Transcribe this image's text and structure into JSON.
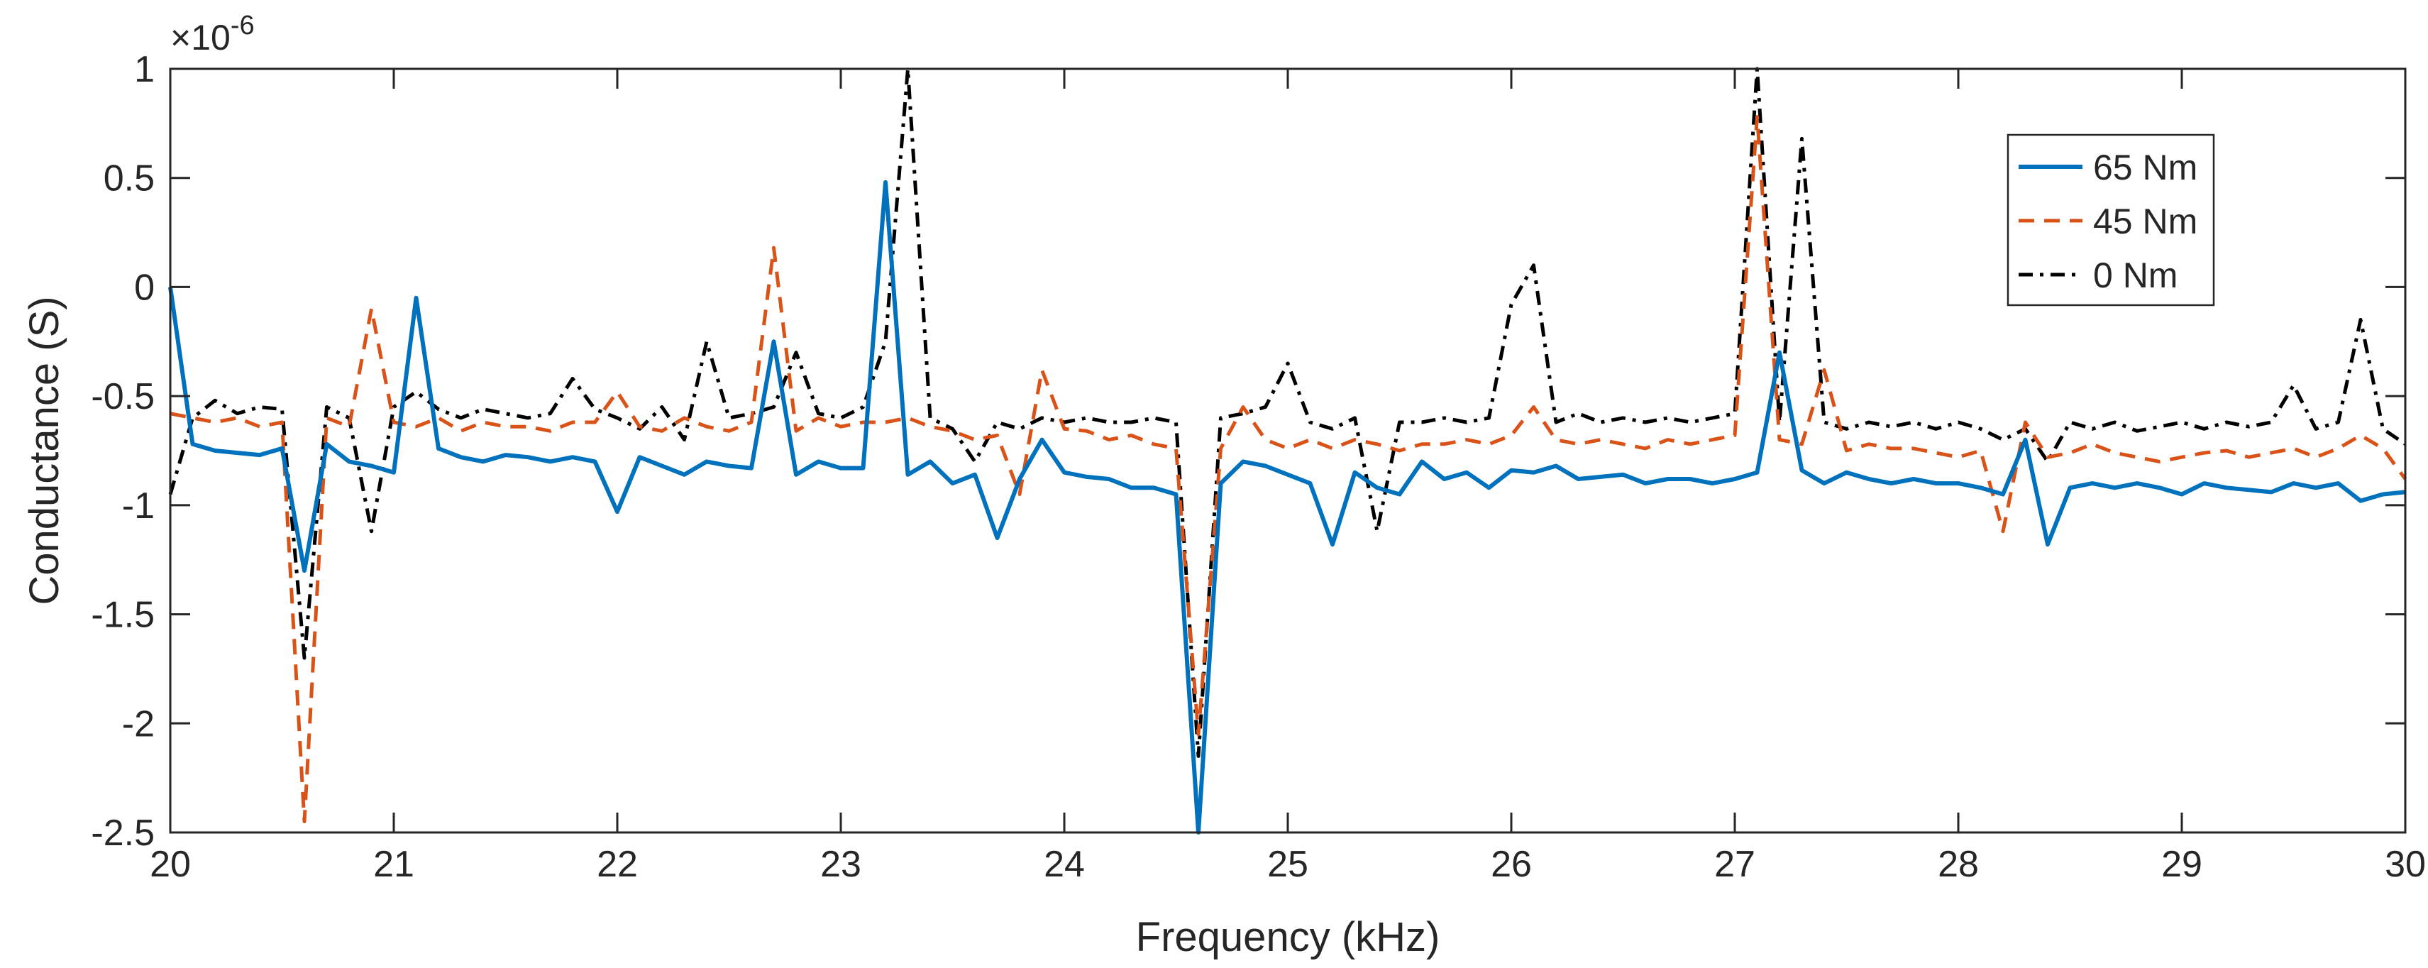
{
  "chart_data": {
    "type": "line",
    "xlabel": "Frequency (kHz)",
    "ylabel": "Conductance (S)",
    "y_exponent_label": "×10",
    "y_exponent_power": "-6",
    "xlim": [
      20,
      30
    ],
    "ylim": [
      -2.5,
      1
    ],
    "xticks": [
      "20",
      "21",
      "22",
      "23",
      "24",
      "25",
      "26",
      "27",
      "28",
      "29",
      "30"
    ],
    "yticks": [
      "1",
      "0.5",
      "0",
      "-0.5",
      "-1",
      "-1.5",
      "-2",
      "-2.5"
    ],
    "x": [
      20.0,
      20.1,
      20.2,
      20.3,
      20.4,
      20.5,
      20.6,
      20.7,
      20.8,
      20.9,
      21.0,
      21.1,
      21.2,
      21.3,
      21.4,
      21.5,
      21.6,
      21.7,
      21.8,
      21.9,
      22.0,
      22.1,
      22.2,
      22.3,
      22.4,
      22.5,
      22.6,
      22.7,
      22.8,
      22.9,
      23.0,
      23.1,
      23.2,
      23.3,
      23.4,
      23.5,
      23.6,
      23.7,
      23.8,
      23.9,
      24.0,
      24.1,
      24.2,
      24.3,
      24.4,
      24.5,
      24.6,
      24.7,
      24.8,
      24.9,
      25.0,
      25.1,
      25.2,
      25.3,
      25.4,
      25.5,
      25.6,
      25.7,
      25.8,
      25.9,
      26.0,
      26.1,
      26.2,
      26.3,
      26.4,
      26.5,
      26.6,
      26.7,
      26.8,
      26.9,
      27.0,
      27.1,
      27.2,
      27.3,
      27.4,
      27.5,
      27.6,
      27.7,
      27.8,
      27.9,
      28.0,
      28.1,
      28.2,
      28.3,
      28.4,
      28.5,
      28.6,
      28.7,
      28.8,
      28.9,
      29.0,
      29.1,
      29.2,
      29.3,
      29.4,
      29.5,
      29.6,
      29.7,
      29.8,
      29.9,
      30.0
    ],
    "series": [
      {
        "name": "65 Nm",
        "color": "#0072BD",
        "dash": "solid",
        "values": [
          0.0,
          -0.72,
          -0.75,
          -0.76,
          -0.77,
          -0.74,
          -1.3,
          -0.72,
          -0.8,
          -0.82,
          -0.85,
          -0.05,
          -0.74,
          -0.78,
          -0.8,
          -0.77,
          -0.78,
          -0.8,
          -0.78,
          -0.8,
          -1.03,
          -0.78,
          -0.82,
          -0.86,
          -0.8,
          -0.82,
          -0.83,
          -0.25,
          -0.86,
          -0.8,
          -0.83,
          -0.83,
          0.48,
          -0.86,
          -0.8,
          -0.9,
          -0.86,
          -1.15,
          -0.88,
          -0.7,
          -0.85,
          -0.87,
          -0.88,
          -0.92,
          -0.92,
          -0.95,
          -2.5,
          -0.9,
          -0.8,
          -0.82,
          -0.86,
          -0.9,
          -1.18,
          -0.85,
          -0.92,
          -0.95,
          -0.8,
          -0.88,
          -0.85,
          -0.92,
          -0.84,
          -0.85,
          -0.82,
          -0.88,
          -0.87,
          -0.86,
          -0.9,
          -0.88,
          -0.88,
          -0.9,
          -0.88,
          -0.85,
          -0.3,
          -0.84,
          -0.9,
          -0.85,
          -0.88,
          -0.9,
          -0.88,
          -0.9,
          -0.9,
          -0.92,
          -0.95,
          -0.7,
          -1.18,
          -0.92,
          -0.9,
          -0.92,
          -0.9,
          -0.92,
          -0.95,
          -0.9,
          -0.92,
          -0.93,
          -0.94,
          -0.9,
          -0.92,
          -0.9,
          -0.98,
          -0.95,
          -0.94
        ]
      },
      {
        "name": "45 Nm",
        "color": "#D95319",
        "dash": "dashed",
        "values": [
          -0.58,
          -0.6,
          -0.62,
          -0.6,
          -0.64,
          -0.62,
          -2.45,
          -0.6,
          -0.64,
          -0.1,
          -0.62,
          -0.64,
          -0.6,
          -0.66,
          -0.62,
          -0.64,
          -0.64,
          -0.66,
          -0.62,
          -0.62,
          -0.48,
          -0.64,
          -0.66,
          -0.6,
          -0.64,
          -0.66,
          -0.62,
          0.18,
          -0.66,
          -0.6,
          -0.64,
          -0.62,
          -0.62,
          -0.6,
          -0.64,
          -0.66,
          -0.7,
          -0.68,
          -0.95,
          -0.38,
          -0.65,
          -0.66,
          -0.7,
          -0.68,
          -0.72,
          -0.74,
          -2.05,
          -0.74,
          -0.55,
          -0.7,
          -0.74,
          -0.7,
          -0.74,
          -0.7,
          -0.72,
          -0.75,
          -0.72,
          -0.72,
          -0.7,
          -0.72,
          -0.68,
          -0.55,
          -0.7,
          -0.72,
          -0.7,
          -0.72,
          -0.74,
          -0.7,
          -0.72,
          -0.7,
          -0.68,
          0.78,
          -0.7,
          -0.72,
          -0.38,
          -0.75,
          -0.72,
          -0.74,
          -0.74,
          -0.76,
          -0.78,
          -0.75,
          -1.12,
          -0.62,
          -0.78,
          -0.76,
          -0.72,
          -0.76,
          -0.78,
          -0.8,
          -0.78,
          -0.76,
          -0.75,
          -0.78,
          -0.76,
          -0.74,
          -0.78,
          -0.74,
          -0.68,
          -0.74,
          -0.88
        ]
      },
      {
        "name": "0 Nm",
        "color": "#000000",
        "dash": "dashdot",
        "values": [
          -0.95,
          -0.6,
          -0.52,
          -0.58,
          -0.55,
          -0.56,
          -1.7,
          -0.55,
          -0.6,
          -1.12,
          -0.55,
          -0.48,
          -0.56,
          -0.6,
          -0.56,
          -0.58,
          -0.6,
          -0.58,
          -0.42,
          -0.56,
          -0.6,
          -0.65,
          -0.55,
          -0.7,
          -0.25,
          -0.6,
          -0.58,
          -0.55,
          -0.3,
          -0.58,
          -0.6,
          -0.55,
          -0.25,
          1.0,
          -0.6,
          -0.65,
          -0.8,
          -0.62,
          -0.65,
          -0.6,
          -0.62,
          -0.6,
          -0.62,
          -0.62,
          -0.6,
          -0.62,
          -2.15,
          -0.6,
          -0.58,
          -0.55,
          -0.35,
          -0.62,
          -0.65,
          -0.6,
          -1.12,
          -0.62,
          -0.62,
          -0.6,
          -0.62,
          -0.6,
          -0.08,
          0.1,
          -0.62,
          -0.58,
          -0.62,
          -0.6,
          -0.62,
          -0.6,
          -0.62,
          -0.6,
          -0.58,
          1.0,
          -0.62,
          0.68,
          -0.62,
          -0.65,
          -0.62,
          -0.64,
          -0.62,
          -0.65,
          -0.62,
          -0.65,
          -0.7,
          -0.65,
          -0.8,
          -0.62,
          -0.65,
          -0.62,
          -0.66,
          -0.64,
          -0.62,
          -0.65,
          -0.62,
          -0.64,
          -0.62,
          -0.45,
          -0.65,
          -0.62,
          -0.15,
          -0.65,
          -0.72
        ]
      }
    ],
    "legend_position": "top-right",
    "grid": false
  }
}
